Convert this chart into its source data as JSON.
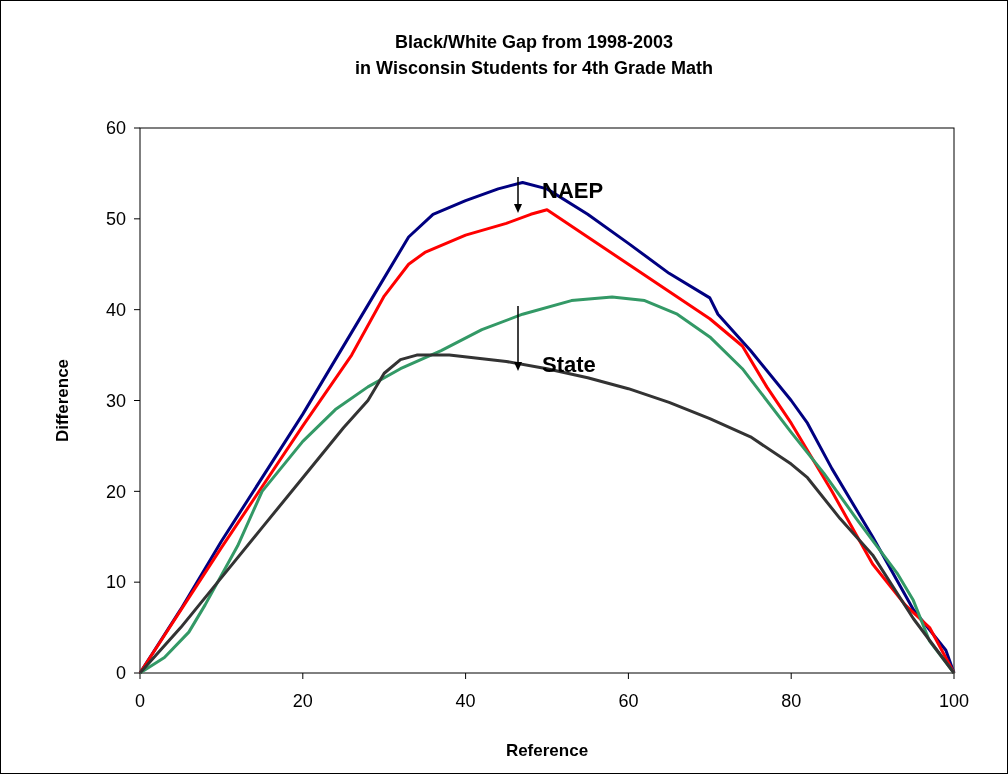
{
  "chart_data": {
    "type": "line",
    "title": "Black/White Gap from 1998-2003\nin Wisconsin Students for 4th Grade Math",
    "xlabel": "Reference",
    "ylabel": "Difference",
    "xlim": [
      0,
      100
    ],
    "xticks": [
      0,
      20,
      40,
      60,
      80,
      100
    ],
    "ylim": [
      0,
      60
    ],
    "yticks": [
      0,
      10,
      20,
      30,
      40,
      50,
      60
    ],
    "grid": false,
    "marker": "none",
    "line_style": "solid",
    "series": [
      {
        "color": "#000080",
        "x": [
          0,
          5,
          10,
          20,
          26,
          30,
          33,
          36,
          40,
          44,
          47,
          50,
          55,
          60,
          65,
          70,
          71,
          75,
          80,
          82,
          85,
          90,
          95,
          99,
          100
        ],
        "values": [
          0,
          7,
          14.5,
          28.5,
          37.5,
          43.5,
          48,
          50.5,
          52,
          53.3,
          54,
          53.3,
          50.5,
          47.3,
          44,
          41.3,
          39.5,
          35.5,
          30,
          27.5,
          22.5,
          15,
          7,
          2.5,
          0
        ]
      },
      {
        "color": "#ff0000",
        "x": [
          0,
          10,
          20,
          26,
          30,
          33,
          35,
          40,
          45,
          48,
          50,
          55,
          60,
          65,
          70,
          74,
          77,
          80,
          85,
          90,
          94,
          97,
          100
        ],
        "values": [
          0,
          13.8,
          27.2,
          35,
          41.5,
          45,
          46.3,
          48.2,
          49.5,
          50.5,
          51,
          48,
          45,
          42,
          39,
          36,
          31.5,
          27.5,
          20,
          12,
          7.5,
          5,
          0
        ]
      },
      {
        "color": "#339966",
        "x": [
          0,
          3,
          6,
          8,
          12,
          15,
          20,
          24,
          28,
          32,
          37,
          42,
          47,
          53,
          58,
          62,
          66,
          70,
          74,
          80,
          84,
          88,
          93,
          95,
          97,
          100
        ],
        "values": [
          0,
          1.7,
          4.5,
          7.5,
          14,
          20,
          25.5,
          29,
          31.5,
          33.5,
          35.5,
          37.8,
          39.5,
          41,
          41.4,
          41,
          39.5,
          37,
          33.5,
          26.5,
          22,
          17,
          11,
          8,
          3.5,
          0
        ]
      },
      {
        "color": "#333333",
        "x": [
          0,
          5,
          10,
          15,
          20,
          25,
          28,
          30,
          32,
          34,
          38,
          45,
          50,
          55,
          60,
          65,
          70,
          75,
          80,
          82,
          86,
          90,
          95,
          100
        ],
        "values": [
          0,
          5,
          10.5,
          16,
          21.5,
          27,
          30,
          33,
          34.5,
          35,
          35,
          34.3,
          33.5,
          32.5,
          31.3,
          29.8,
          28,
          26,
          23,
          21.5,
          17,
          13,
          6,
          0
        ]
      }
    ],
    "annotations": [
      "NAEP",
      "State"
    ]
  }
}
